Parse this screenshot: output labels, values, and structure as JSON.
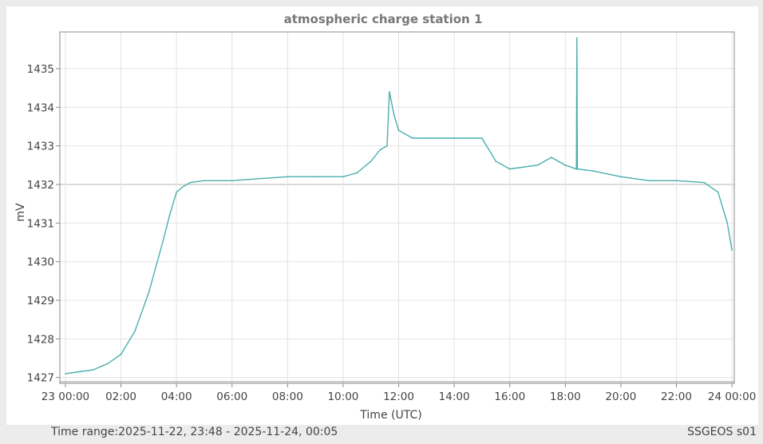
{
  "chart_data": {
    "type": "line",
    "title": "atmospheric charge station 1",
    "xlabel": "Time (UTC)",
    "ylabel": "mV",
    "xlim": [
      "2025-11-22 23:48",
      "2025-11-24 00:05"
    ],
    "ylim": [
      1426.85,
      1435.95
    ],
    "x_ticks": [
      "23 00:00",
      "02:00",
      "04:00",
      "06:00",
      "08:00",
      "10:00",
      "12:00",
      "14:00",
      "16:00",
      "18:00",
      "20:00",
      "22:00",
      "24 00:00"
    ],
    "y_ticks": [
      1427,
      1428,
      1429,
      1430,
      1431,
      1432,
      1433,
      1434,
      1435
    ],
    "grid": true,
    "reference_line": 1432,
    "line_color": "#4aaeae",
    "series": [
      {
        "x": [
          "2025-11-23 00:00",
          "2025-11-23 00:30",
          "2025-11-23 01:00",
          "2025-11-23 01:30",
          "2025-11-23 02:00",
          "2025-11-23 02:30",
          "2025-11-23 03:00",
          "2025-11-23 03:30",
          "2025-11-23 03:45",
          "2025-11-23 04:00",
          "2025-11-23 04:15",
          "2025-11-23 04:30",
          "2025-11-23 05:00",
          "2025-11-23 06:00",
          "2025-11-23 07:00",
          "2025-11-23 08:00",
          "2025-11-23 09:00",
          "2025-11-23 10:00",
          "2025-11-23 10:30",
          "2025-11-23 11:00",
          "2025-11-23 11:20",
          "2025-11-23 11:35",
          "2025-11-23 11:40",
          "2025-11-23 11:50",
          "2025-11-23 12:00",
          "2025-11-23 12:30",
          "2025-11-23 13:00",
          "2025-11-23 14:00",
          "2025-11-23 15:00",
          "2025-11-23 15:30",
          "2025-11-23 16:00",
          "2025-11-23 17:00",
          "2025-11-23 17:30",
          "2025-11-23 18:00",
          "2025-11-23 18:24",
          "2025-11-23 18:25",
          "2025-11-23 18:26",
          "2025-11-23 19:00",
          "2025-11-23 20:00",
          "2025-11-23 21:00",
          "2025-11-23 22:00",
          "2025-11-23 23:00",
          "2025-11-23 23:30",
          "2025-11-23 23:50",
          "2025-11-24 00:00"
        ],
        "values": [
          1427.1,
          1427.15,
          1427.2,
          1427.35,
          1427.6,
          1428.2,
          1429.2,
          1430.5,
          1431.2,
          1431.8,
          1431.95,
          1432.05,
          1432.1,
          1432.1,
          1432.15,
          1432.2,
          1432.2,
          1432.2,
          1432.3,
          1432.6,
          1432.9,
          1433.0,
          1434.4,
          1433.8,
          1433.4,
          1433.2,
          1433.2,
          1433.2,
          1433.2,
          1432.6,
          1432.4,
          1432.5,
          1432.7,
          1432.5,
          1432.4,
          1435.8,
          1432.4,
          1432.35,
          1432.2,
          1432.1,
          1432.1,
          1432.05,
          1431.8,
          1431.0,
          1430.3
        ]
      }
    ]
  },
  "footer": {
    "time_range": "Time range:2025-11-22, 23:48 - 2025-11-24, 00:05",
    "brand": "SSGEOS s01"
  }
}
